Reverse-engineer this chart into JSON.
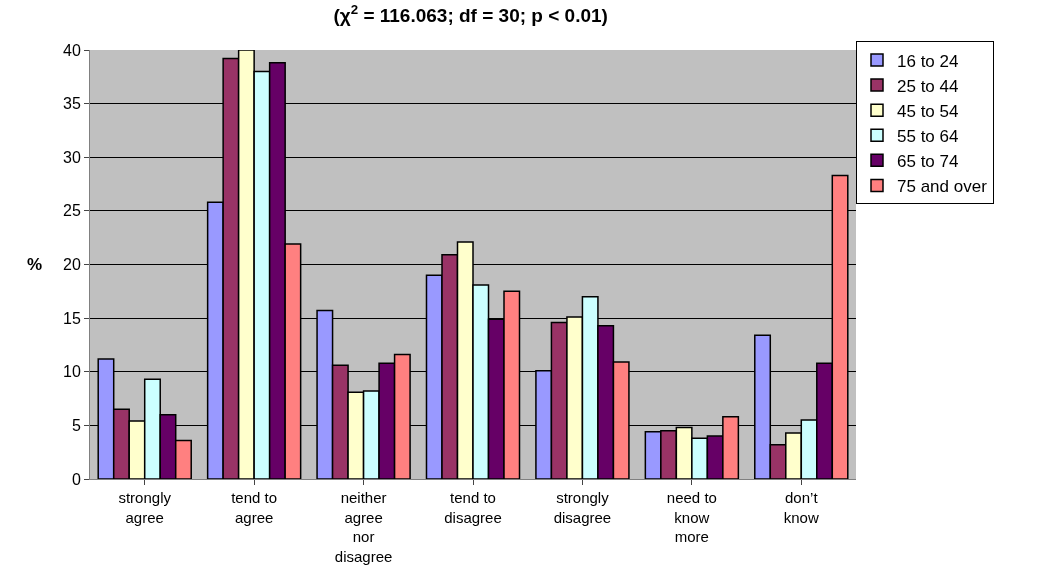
{
  "chart_data": {
    "type": "bar",
    "title": "(χ$^{2}$ = 116.063; df = 30; p < 0.01)",
    "ylabel": "%",
    "categories": [
      "strongly agree",
      "tend to agree",
      "neither agree nor disagree",
      "tend to disagree",
      "strongly disagree",
      "need to know more",
      "don’t know"
    ],
    "series": [
      {
        "name": "16 to 24",
        "color": "#9999ff",
        "values": [
          11.2,
          25.8,
          15.7,
          19.0,
          10.1,
          4.4,
          13.4
        ]
      },
      {
        "name": "25 to 44",
        "color": "#993366",
        "values": [
          6.5,
          39.2,
          10.6,
          20.9,
          14.6,
          4.5,
          3.2
        ]
      },
      {
        "name": "45 to 54",
        "color": "#ffffcc",
        "values": [
          5.4,
          40.0,
          8.1,
          22.1,
          15.1,
          4.8,
          4.3
        ]
      },
      {
        "name": "55 to 64",
        "color": "#ccffff",
        "values": [
          9.3,
          38.0,
          8.2,
          18.1,
          17.0,
          3.8,
          5.5
        ]
      },
      {
        "name": "65 to 74",
        "color": "#660066",
        "values": [
          6.0,
          38.8,
          10.8,
          14.9,
          14.3,
          4.0,
          10.8
        ]
      },
      {
        "name": "75 and over",
        "color": "#ff8080",
        "values": [
          3.6,
          21.9,
          11.6,
          17.5,
          10.9,
          5.8,
          28.3
        ]
      }
    ],
    "ylim": [
      0,
      40
    ],
    "yticks": [
      0,
      5,
      10,
      15,
      20,
      25,
      30,
      35,
      40
    ],
    "grid": "y",
    "legend": "top right"
  }
}
